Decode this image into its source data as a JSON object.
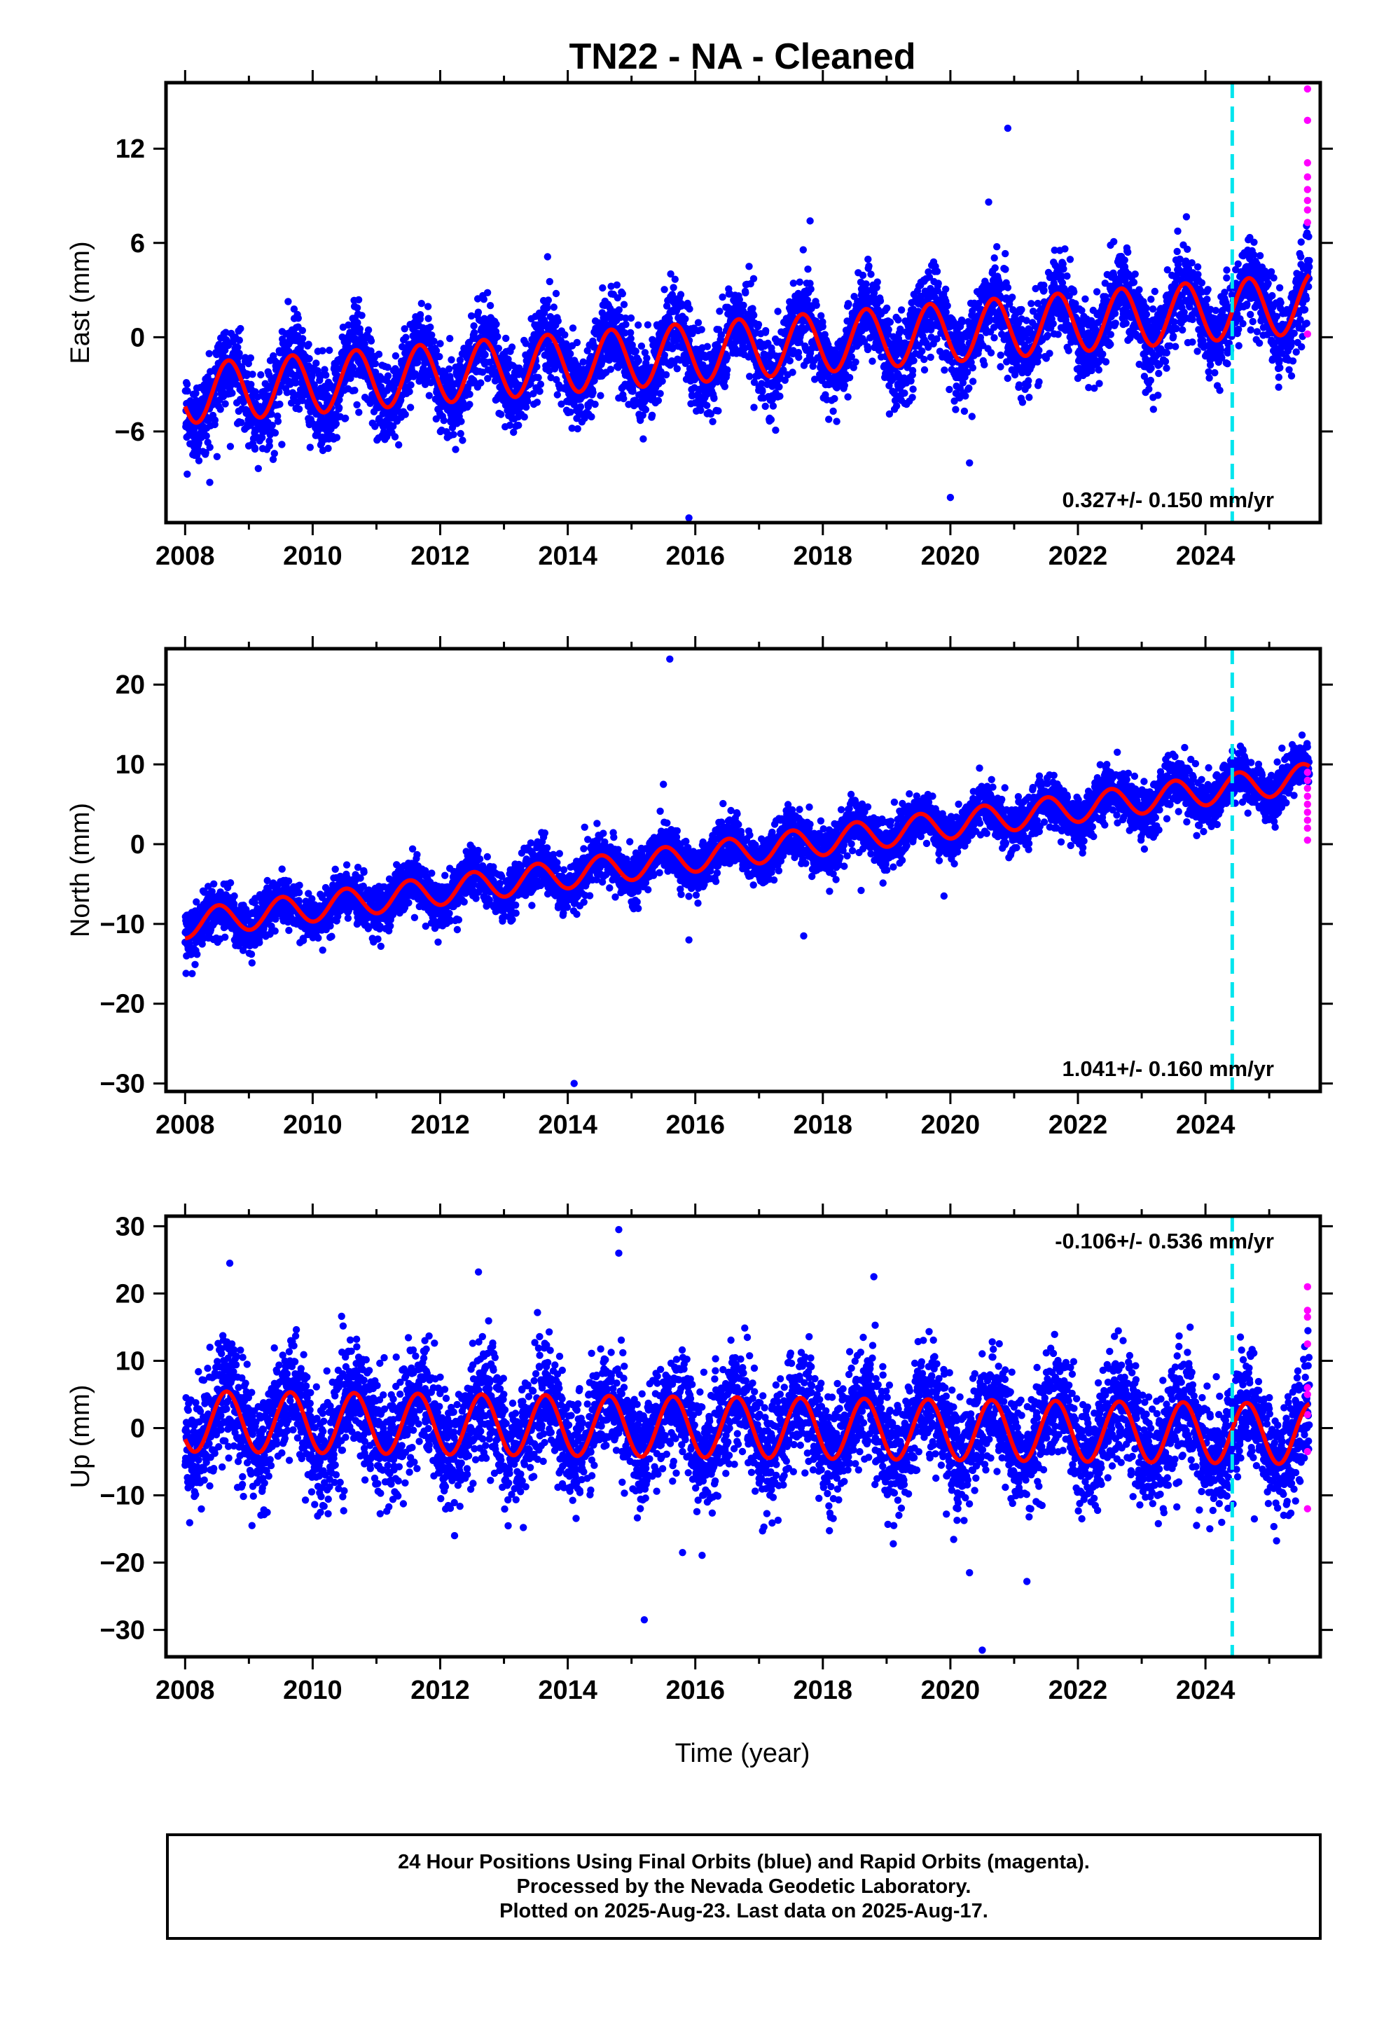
{
  "title": "TN22  - NA - Cleaned",
  "xlabel": "Time (year)",
  "colors": {
    "final_orbits": "#0000ff",
    "rapid_orbits": "#ff00ff",
    "model": "#ff0000",
    "event_line": "#00e5ee",
    "frame": "#000000"
  },
  "footer": {
    "line1": "24 Hour Positions Using Final Orbits (blue) and Rapid Orbits (magenta).",
    "line2": "Processed by the Nevada Geodetic Laboratory.",
    "line3": "Plotted on 2025-Aug-23. Last data on 2025-Aug-17."
  },
  "chart_data": [
    {
      "type": "scatter",
      "name": "East",
      "ylabel": "East (mm)",
      "rate_label": "0.327+/- 0.150 mm/yr",
      "rate_position": "bottom-right",
      "xlim": [
        2007.7,
        2025.8
      ],
      "ylim": [
        -11.8,
        16.2
      ],
      "xticks": [
        2008,
        2010,
        2012,
        2014,
        2016,
        2018,
        2020,
        2022,
        2024
      ],
      "yticks": [
        -6,
        0,
        6,
        12
      ],
      "event_line_x": 2024.42,
      "data_span": [
        2008.0,
        2025.63
      ],
      "rapid_span": [
        2025.45,
        2025.63
      ],
      "trend": {
        "intercept_2008": -3.6,
        "rate": 0.327
      },
      "seasonal_amplitude": 1.9,
      "seasonal_phase_peak": 0.68,
      "scatter_std": 1.3,
      "outliers": [
        [
          2015.9,
          -11.5
        ],
        [
          2020.0,
          -10.2
        ],
        [
          2020.3,
          -8.0
        ],
        [
          2020.9,
          13.3
        ],
        [
          2020.6,
          8.6
        ],
        [
          2017.8,
          7.4
        ],
        [
          2009.4,
          -7.4
        ],
        [
          2008.5,
          -7.6
        ]
      ],
      "rapid_points": [
        [
          2025.6,
          15.8
        ],
        [
          2025.6,
          13.8
        ],
        [
          2025.6,
          11.1
        ],
        [
          2025.6,
          10.2
        ],
        [
          2025.6,
          9.4
        ],
        [
          2025.6,
          8.7
        ],
        [
          2025.6,
          8.1
        ],
        [
          2025.6,
          7.3
        ],
        [
          2025.6,
          0.2
        ]
      ]
    },
    {
      "type": "scatter",
      "name": "North",
      "ylabel": "North (mm)",
      "rate_label": "1.041+/- 0.160 mm/yr",
      "rate_position": "bottom-right",
      "xlim": [
        2007.7,
        2025.8
      ],
      "ylim": [
        -31.0,
        24.5
      ],
      "xticks": [
        2008,
        2010,
        2012,
        2014,
        2016,
        2018,
        2020,
        2022,
        2024
      ],
      "yticks": [
        -30,
        -20,
        -10,
        0,
        10,
        20
      ],
      "event_line_x": 2024.42,
      "data_span": [
        2008.0,
        2025.63
      ],
      "rapid_span": [
        2025.45,
        2025.63
      ],
      "trend": {
        "intercept_2008": -10.0,
        "rate": 1.041
      },
      "seasonal_amplitude": 1.8,
      "seasonal_phase_peak": 0.52,
      "scatter_std": 1.5,
      "outliers": [
        [
          2015.6,
          23.2
        ],
        [
          2014.1,
          -30.0
        ],
        [
          2015.9,
          -12.0
        ],
        [
          2017.7,
          -11.5
        ],
        [
          2019.9,
          -6.5
        ],
        [
          2018.6,
          -5.8
        ],
        [
          2015.5,
          7.5
        ]
      ],
      "rapid_points": [
        [
          2025.6,
          9.0
        ],
        [
          2025.6,
          8.0
        ],
        [
          2025.6,
          7.0
        ],
        [
          2025.6,
          6.0
        ],
        [
          2025.6,
          5.0
        ],
        [
          2025.6,
          4.0
        ],
        [
          2025.6,
          3.0
        ],
        [
          2025.6,
          2.0
        ],
        [
          2025.6,
          0.5
        ]
      ]
    },
    {
      "type": "scatter",
      "name": "Up",
      "ylabel": "Up (mm)",
      "rate_label": "-0.106+/- 0.536 mm/yr",
      "rate_position": "top-right",
      "xlim": [
        2007.7,
        2025.8
      ],
      "ylim": [
        -34.0,
        31.5
      ],
      "xticks": [
        2008,
        2010,
        2012,
        2014,
        2016,
        2018,
        2020,
        2022,
        2024
      ],
      "yticks": [
        -30,
        -20,
        -10,
        0,
        10,
        20,
        30
      ],
      "event_line_x": 2024.42,
      "data_span": [
        2008.0,
        2025.63
      ],
      "rapid_span": [
        2025.45,
        2025.63
      ],
      "trend": {
        "intercept_2008": 1.0,
        "rate": -0.106
      },
      "seasonal_amplitude": 4.5,
      "seasonal_phase_peak": 0.65,
      "scatter_std": 4.2,
      "outliers": [
        [
          2014.8,
          29.5
        ],
        [
          2015.2,
          -28.5
        ],
        [
          2020.5,
          -33.0
        ],
        [
          2014.8,
          26.0
        ],
        [
          2008.7,
          24.5
        ],
        [
          2012.6,
          23.2
        ],
        [
          2018.8,
          22.5
        ],
        [
          2015.8,
          -18.5
        ],
        [
          2021.2,
          -22.8
        ],
        [
          2020.3,
          -21.5
        ]
      ],
      "rapid_points": [
        [
          2025.6,
          21.0
        ],
        [
          2025.6,
          17.5
        ],
        [
          2025.6,
          16.5
        ],
        [
          2025.6,
          12.5
        ],
        [
          2025.6,
          6.0
        ],
        [
          2025.6,
          5.0
        ],
        [
          2025.6,
          2.0
        ],
        [
          2025.6,
          -3.5
        ],
        [
          2025.6,
          -12.0
        ]
      ]
    }
  ]
}
